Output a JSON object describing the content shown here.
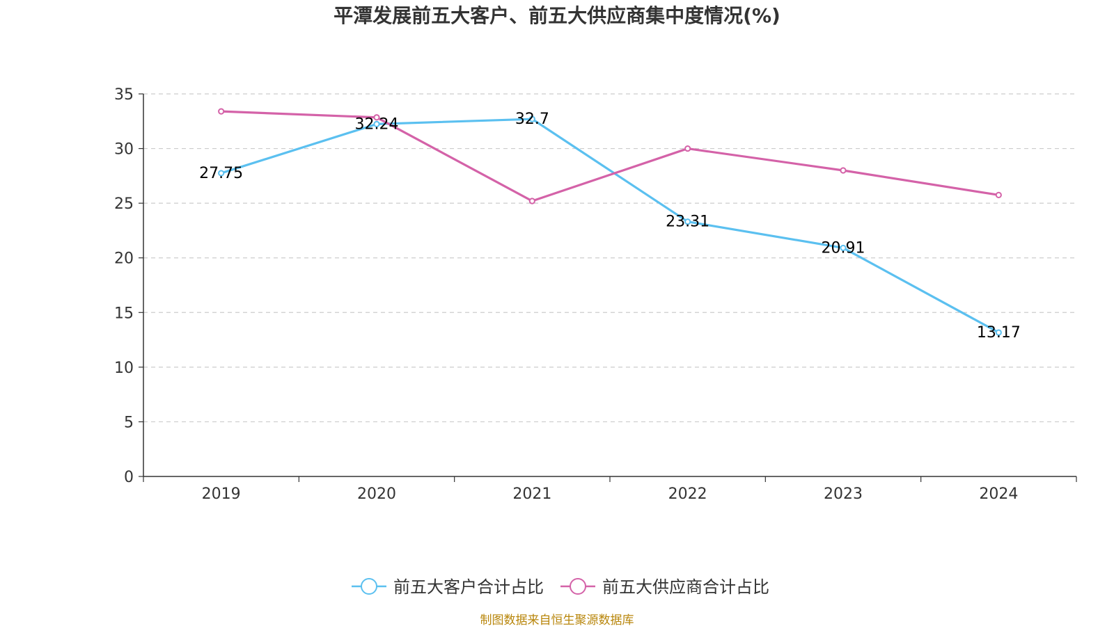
{
  "chart_data": {
    "type": "line",
    "title": "平潭发展前五大客户、前五大供应商集中度情况(%)",
    "categories": [
      "2019",
      "2020",
      "2021",
      "2022",
      "2023",
      "2024"
    ],
    "ylim": [
      0,
      35
    ],
    "yticks": [
      0,
      5,
      10,
      15,
      20,
      25,
      30,
      35
    ],
    "grid": true,
    "legend_position": "bottom",
    "series": [
      {
        "name": "前五大客户合计占比",
        "color": "#5bc0f0",
        "values": [
          27.75,
          32.24,
          32.7,
          23.31,
          20.91,
          13.17
        ],
        "labels": [
          "27.75",
          "32.24",
          "32.7",
          "23.31",
          "20.91",
          "13.17"
        ]
      },
      {
        "name": "前五大供应商合计占比",
        "color": "#d462a8",
        "values": [
          33.4,
          32.85,
          25.2,
          30.0,
          28.0,
          25.75
        ]
      }
    ]
  },
  "source": "制图数据来自恒生聚源数据库"
}
